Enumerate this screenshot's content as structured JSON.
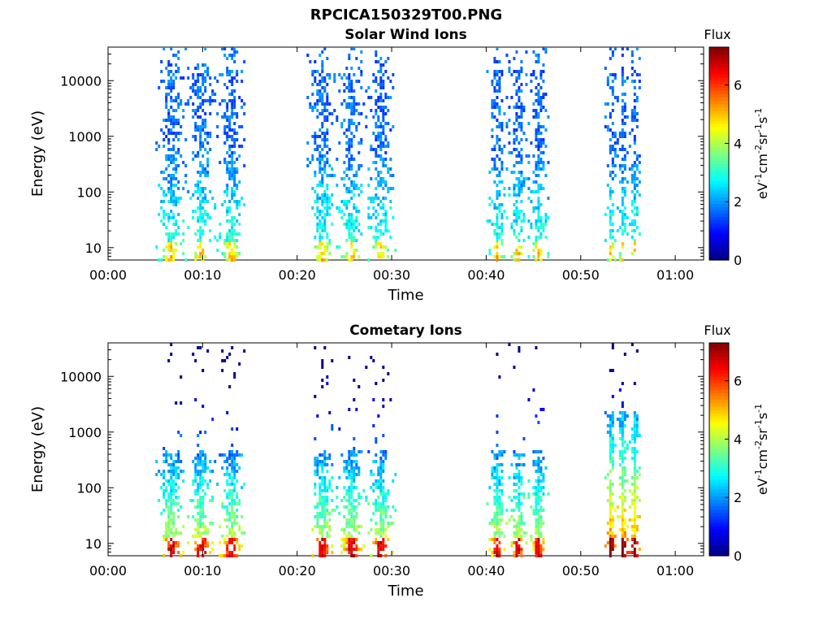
{
  "figure_title": "RPCICA150329T00.PNG",
  "chart_data": [
    {
      "type": "heatmap",
      "title": "Solar Wind Ions",
      "xlabel": "Time",
      "ylabel": "Energy (eV)",
      "x_ticks": [
        "00:00",
        "00:10",
        "00:20",
        "00:30",
        "00:40",
        "00:50",
        "01:00"
      ],
      "x_range_minutes": [
        0,
        63
      ],
      "y_scale": "log",
      "y_ticks": [
        10,
        100,
        1000,
        10000
      ],
      "y_range": [
        6,
        40000
      ],
      "colorbar": {
        "title": "Flux",
        "label": "eV-1cm-2sr-1s-1",
        "ticks": [
          0,
          2,
          4,
          6
        ],
        "range": [
          0,
          7.3
        ],
        "colormap": "jet"
      },
      "bursts_minutes": [
        {
          "start": 5.0,
          "end": 14.5
        },
        {
          "start": 21.0,
          "end": 30.3
        },
        {
          "start": 40.0,
          "end": 46.5
        },
        {
          "start": 52.5,
          "end": 56.2
        }
      ]
    },
    {
      "type": "heatmap",
      "title": "Cometary Ions",
      "xlabel": "Time",
      "ylabel": "Energy (eV)",
      "x_ticks": [
        "00:00",
        "00:10",
        "00:20",
        "00:30",
        "00:40",
        "00:50",
        "01:00"
      ],
      "x_range_minutes": [
        0,
        63
      ],
      "y_scale": "log",
      "y_ticks": [
        10,
        100,
        1000,
        10000
      ],
      "y_range": [
        6,
        40000
      ],
      "colorbar": {
        "title": "Flux",
        "label": "eV-1cm-2sr-1s-1",
        "ticks": [
          0,
          2,
          4,
          6
        ],
        "range": [
          0,
          7.3
        ],
        "colormap": "jet"
      },
      "bursts_minutes": [
        {
          "start": 5.0,
          "end": 14.5
        },
        {
          "start": 21.0,
          "end": 30.3
        },
        {
          "start": 40.0,
          "end": 46.5
        },
        {
          "start": 52.5,
          "end": 56.2
        }
      ]
    }
  ]
}
